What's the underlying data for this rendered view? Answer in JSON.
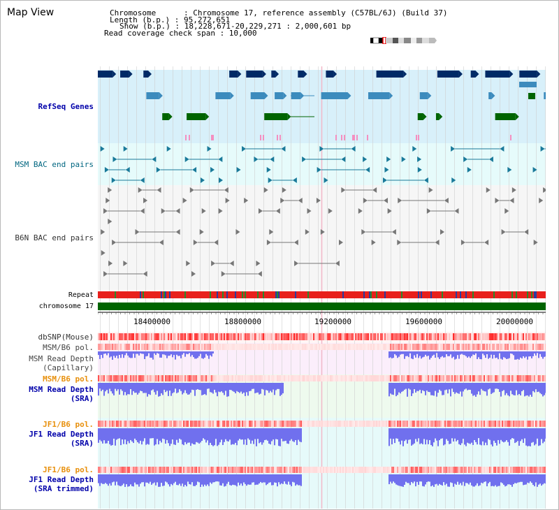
{
  "header": {
    "title": "Map View",
    "chromosome": "Chromosome      : Chromosome 17, reference assembly (C57BL/6J) (Build 37)",
    "length": "Length (b.p.) : 95,272,651",
    "show": "Show (b.p.) : 18,228,671-20,229,271 : 2,000,601 bp",
    "coverage": "Read coverage check span : 10,000"
  },
  "tracks": {
    "refseq": "RefSeq Genes",
    "msm_bac": "MSM BAC end pairs",
    "b6n_bac": "B6N BAC end pairs",
    "repeat": "Repeat",
    "chromosome": "chromosome 17",
    "dbsnp": "dbSNP(Mouse)",
    "msm_pol1": "MSM/B6 pol.",
    "msm_depth_cap_1": "MSM Read Depth",
    "msm_depth_cap_2": "(Capillary)",
    "msm_pol2": "MSM/B6 pol.",
    "msm_depth_sra_1": "MSM Read Depth",
    "msm_depth_sra_2": "(SRA)",
    "jf1_pol1": "JF1/B6 pol.",
    "jf1_depth_sra_1": "JF1 Read Depth",
    "jf1_depth_sra_2": "(SRA)",
    "jf1_pol2": "JF1/B6 pol.",
    "jf1_depth_trim_1": "JF1 Read Depth",
    "jf1_depth_trim_2": "(SRA trimmed)"
  },
  "axis": {
    "ticks": [
      "18400000",
      "18800000",
      "19200000",
      "19600000",
      "20000000"
    ],
    "range": [
      18228671,
      20229271
    ]
  },
  "colors": {
    "refseq_bg": "#d8f0fa",
    "msm_bac_bg": "#e6fbfb",
    "b6n_bac_bg": "#f6f6f6",
    "msm_cap_bg": "#fbeefb",
    "msm_sra_bg": "#eefaee",
    "jf1_bg": "#e6fafa",
    "navy": "#002a66",
    "teal": "#3c8bbd",
    "green": "#006400",
    "label_blue": "#0000aa",
    "label_teal": "#006680",
    "label_orange": "#e8900c"
  }
}
